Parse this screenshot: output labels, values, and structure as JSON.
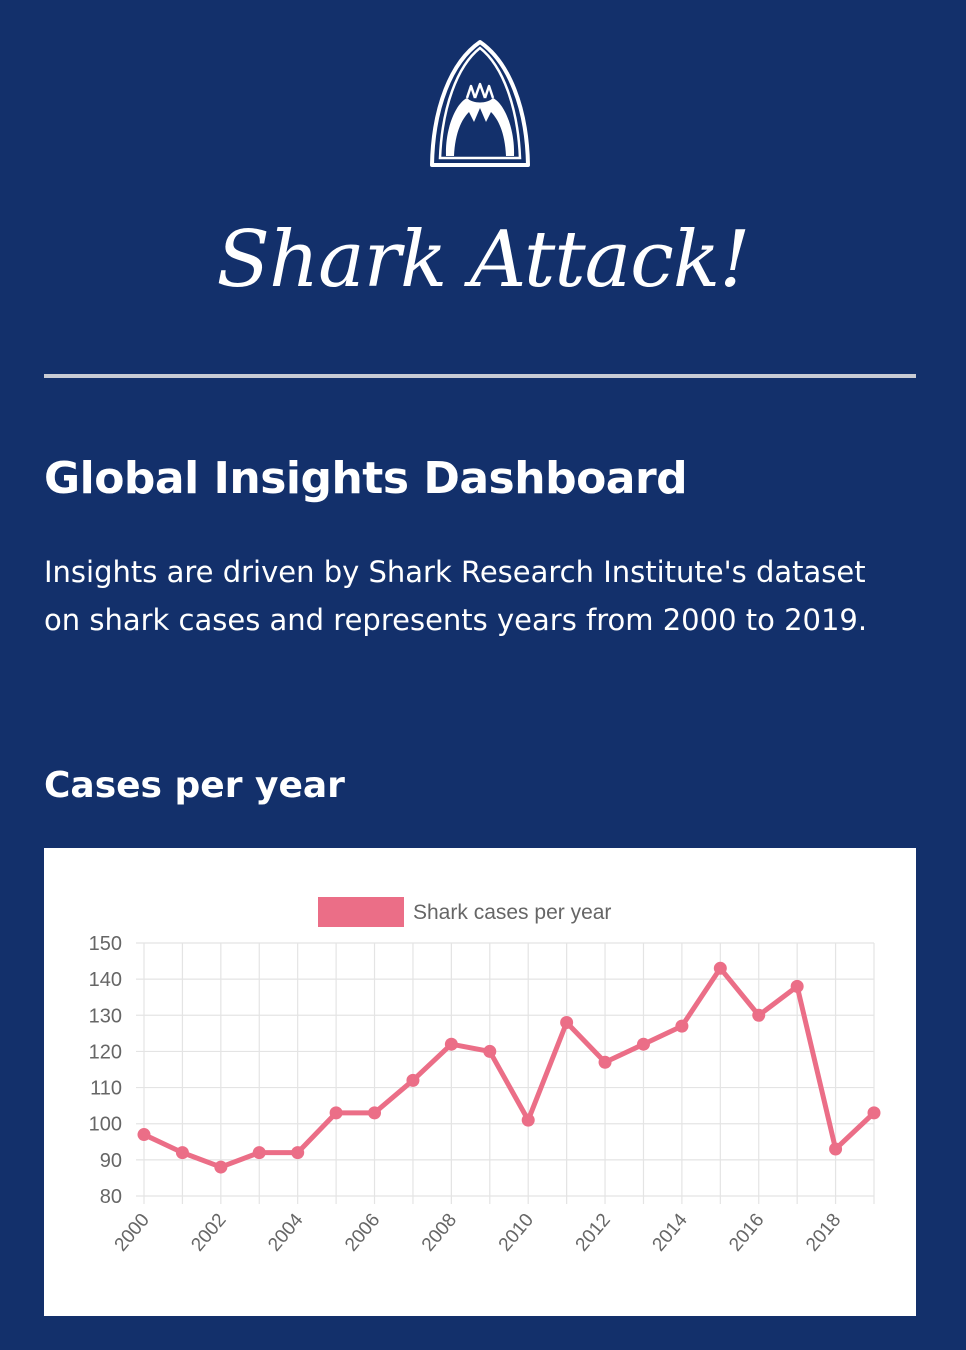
{
  "header": {
    "logo_icon": "shark-jaws-icon",
    "brand_name": "Shark Attack!"
  },
  "main": {
    "title": "Global Insights Dashboard",
    "description": "Insights are driven by Shark Research Institute's dataset on shark cases and represents years from 2000 to 2019.",
    "section_title": "Cases per year"
  },
  "colors": {
    "background": "#13306b",
    "text": "#ffffff",
    "divider": "#c9ccd4",
    "series": "#eb6e87",
    "grid": "#e4e4e4",
    "tick_text": "#666666"
  },
  "chart_data": {
    "type": "line",
    "title": "",
    "xlabel": "",
    "ylabel": "",
    "x": [
      2000,
      2001,
      2002,
      2003,
      2004,
      2005,
      2006,
      2007,
      2008,
      2009,
      2010,
      2011,
      2012,
      2013,
      2014,
      2015,
      2016,
      2017,
      2018,
      2019
    ],
    "x_tick_labels": [
      "2000",
      "2002",
      "2004",
      "2006",
      "2008",
      "2010",
      "2012",
      "2014",
      "2016",
      "2018"
    ],
    "y_tick_labels": [
      "150",
      "140",
      "130",
      "120",
      "110",
      "100",
      "90",
      "80"
    ],
    "ylim": [
      80,
      150
    ],
    "series": [
      {
        "name": "Shark cases per year",
        "values": [
          97,
          92,
          88,
          92,
          92,
          103,
          103,
          112,
          122,
          120,
          101,
          128,
          117,
          122,
          127,
          143,
          130,
          138,
          93,
          103
        ]
      }
    ],
    "grid": true,
    "legend_position": "top"
  }
}
